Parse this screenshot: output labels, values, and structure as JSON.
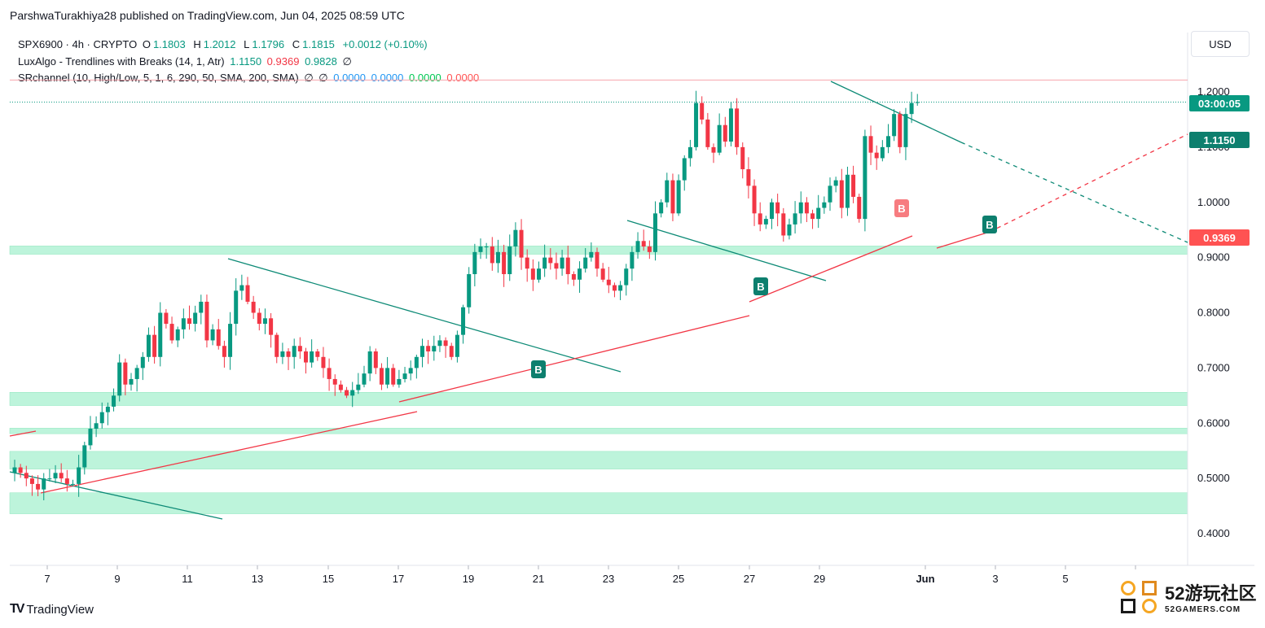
{
  "header": "ParshwaTurakhiya28 published on TradingView.com, Jun 04, 2025 08:59 UTC",
  "legend": {
    "symbol": "SPX6900 · 4h · CRYPTO",
    "o_label": "O",
    "o": "1.1803",
    "h_label": "H",
    "h": "1.2012",
    "l_label": "L",
    "l": "1.1796",
    "c_label": "C",
    "c": "1.1815",
    "change": "+0.0012 (+0.10%)",
    "luxalgo_name": "LuxAlgo - Trendlines with Breaks (14, 1, Atr)",
    "luxalgo_v1": "1.1150",
    "luxalgo_v2": "0.9369",
    "luxalgo_v3": "0.9828",
    "luxalgo_v4": "∅",
    "sr_name": "SRchannel (10, High/Low, 5, 1, 6, 290, 50, SMA, 200, SMA)",
    "sr_n1": "∅",
    "sr_n2": "∅",
    "sr_v1": "0.0000",
    "sr_v2": "0.0000",
    "sr_v3": "0.0000",
    "sr_v4": "0.0000"
  },
  "currency_button": "USD",
  "price_labels": {
    "countdown": "03:00:05",
    "upper_trend": "1.1150",
    "lower_trend": "0.9369"
  },
  "footer": {
    "brand": "TradingView",
    "logo": "TV"
  },
  "watermark": {
    "line1": "52游玩社区",
    "line2": "52GAMERS.COM"
  },
  "colors": {
    "up": "#089981",
    "down": "#f23645",
    "sr_zone": "#b2f2d5",
    "upper_trendline": "#0d8a76",
    "lower_trendline": "#f23645"
  },
  "chart_data": {
    "type": "candlestick",
    "symbol": "SPX6900",
    "timeframe": "4h",
    "ylim": [
      0.36,
      1.28
    ],
    "y_ticks": [
      "0.4000",
      "0.5000",
      "0.6000",
      "0.7000",
      "0.8000",
      "0.9000",
      "1.0000",
      "1.1000",
      "1.2000"
    ],
    "x_ticks": [
      "7",
      "9",
      "11",
      "13",
      "15",
      "17",
      "19",
      "21",
      "23",
      "25",
      "27",
      "29",
      "Jun",
      "3",
      "5"
    ],
    "sr_zones": [
      [
        0.906,
        0.921
      ],
      [
        0.632,
        0.656
      ],
      [
        0.581,
        0.591
      ],
      [
        0.517,
        0.549
      ],
      [
        0.436,
        0.474
      ]
    ],
    "resistance_line": 1.2215,
    "current_price": 1.1815,
    "ohlc_series_close": [
      0.52,
      0.51,
      0.5,
      0.49,
      0.48,
      0.5,
      0.5,
      0.51,
      0.5,
      0.49,
      0.49,
      0.52,
      0.56,
      0.59,
      0.6,
      0.62,
      0.63,
      0.65,
      0.71,
      0.67,
      0.68,
      0.7,
      0.72,
      0.76,
      0.72,
      0.8,
      0.78,
      0.75,
      0.77,
      0.79,
      0.78,
      0.8,
      0.82,
      0.75,
      0.77,
      0.74,
      0.72,
      0.78,
      0.84,
      0.85,
      0.82,
      0.8,
      0.78,
      0.79,
      0.76,
      0.72,
      0.73,
      0.72,
      0.74,
      0.73,
      0.71,
      0.73,
      0.72,
      0.7,
      0.68,
      0.67,
      0.66,
      0.65,
      0.66,
      0.67,
      0.69,
      0.73,
      0.7,
      0.67,
      0.7,
      0.67,
      0.68,
      0.69,
      0.7,
      0.72,
      0.74,
      0.73,
      0.74,
      0.75,
      0.74,
      0.72,
      0.76,
      0.81,
      0.87,
      0.91,
      0.92,
      0.92,
      0.89,
      0.91,
      0.87,
      0.92,
      0.95,
      0.9,
      0.88,
      0.86,
      0.88,
      0.9,
      0.89,
      0.88,
      0.9,
      0.87,
      0.86,
      0.88,
      0.9,
      0.91,
      0.88,
      0.86,
      0.85,
      0.84,
      0.85,
      0.88,
      0.91,
      0.93,
      0.92,
      0.91,
      0.98,
      1.0,
      1.04,
      0.98,
      1.04,
      1.08,
      1.1,
      1.18,
      1.15,
      1.1,
      1.09,
      1.14,
      1.11,
      1.17,
      1.1,
      1.06,
      1.03,
      0.98,
      0.96,
      0.97,
      1.0,
      0.98,
      0.94,
      0.96,
      0.98,
      1.0,
      0.98,
      0.97,
      0.99,
      1.0,
      1.03,
      1.04,
      0.99,
      1.05,
      1.01,
      0.97,
      1.12,
      1.09,
      1.08,
      1.1,
      1.12,
      1.16,
      1.1,
      1.16,
      1.18,
      1.1815
    ],
    "annotations": [
      {
        "type": "buy_signal",
        "label": "B",
        "x_index": 94,
        "price": 0.7
      },
      {
        "type": "buy_signal",
        "label": "B",
        "x_index": 137,
        "price": 0.86
      },
      {
        "type": "sell_signal",
        "label": "B",
        "x_index": 164,
        "price": 0.99
      },
      {
        "type": "buy_signal",
        "label": "B",
        "x_index": 182,
        "price": 0.955
      }
    ]
  }
}
